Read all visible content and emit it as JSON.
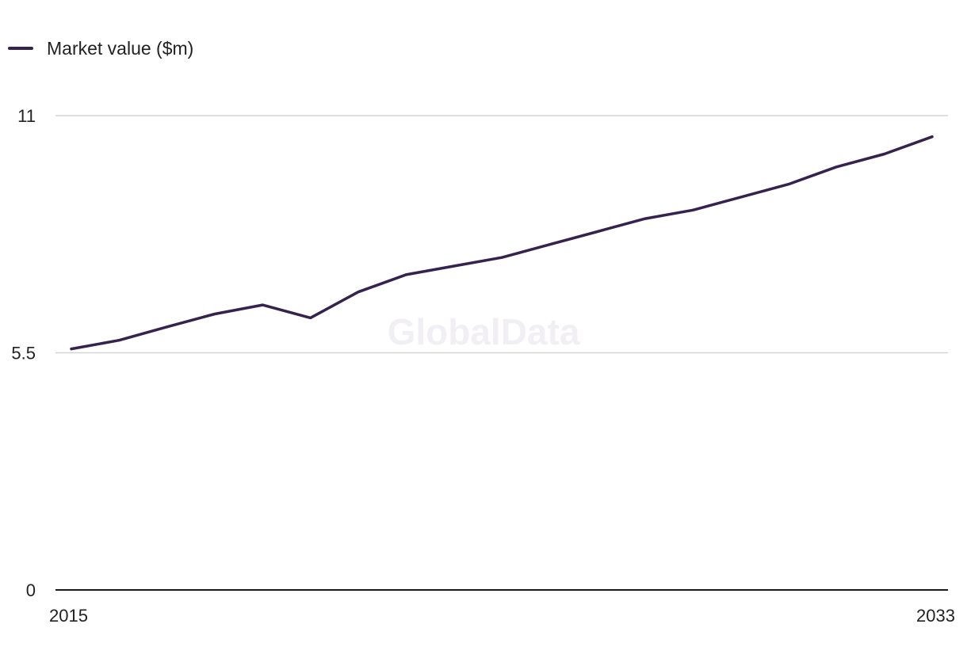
{
  "legend": {
    "label": "Market value ($m)"
  },
  "watermark": "GlobalData",
  "colors": {
    "series": "#35224f",
    "grid": "#d4d4d4",
    "axis": "#1a1a1a"
  },
  "chart_data": {
    "type": "line",
    "x": [
      2015,
      2016,
      2017,
      2018,
      2019,
      2020,
      2021,
      2022,
      2023,
      2024,
      2025,
      2026,
      2027,
      2028,
      2029,
      2030,
      2031,
      2032,
      2033
    ],
    "series": [
      {
        "name": "Market value ($m)",
        "values": [
          5.59,
          5.79,
          6.1,
          6.4,
          6.61,
          6.31,
          6.91,
          7.31,
          7.51,
          7.71,
          8.01,
          8.31,
          8.61,
          8.81,
          9.11,
          9.41,
          9.81,
          10.11,
          10.51
        ]
      }
    ],
    "ylim": [
      0,
      11
    ],
    "yticks": [
      "0",
      "5.5",
      "11"
    ],
    "xticks": [
      "2015",
      "2033"
    ],
    "xlabel": "",
    "ylabel": "",
    "grid": true,
    "legend_position": "top-left"
  }
}
